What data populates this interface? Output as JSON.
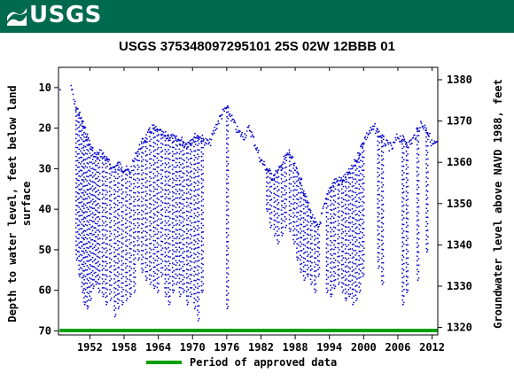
{
  "header": {
    "logo_text": "USGS"
  },
  "chart_data": {
    "type": "scatter",
    "title": "USGS 375348097295101 25S 02W 12BBB 01",
    "ylabel_left": [
      "Depth to water level, feet below land",
      "surface"
    ],
    "ylabel_right": "Groundwater level above NAVD 1988, feet",
    "x_ticks": [
      "1952",
      "1958",
      "1964",
      "1970",
      "1976",
      "1982",
      "1988",
      "1994",
      "2000",
      "2006",
      "2012"
    ],
    "xlim": [
      1946.5,
      2013
    ],
    "y_left_ticks": [
      10,
      20,
      30,
      40,
      50,
      60,
      70
    ],
    "y_left_lim": [
      5,
      71
    ],
    "y_right_ticks": [
      1320,
      1330,
      1340,
      1350,
      1360,
      1370,
      1380
    ],
    "y_right_lim": [
      1318.2,
      1383
    ],
    "series_color": "#0000cc",
    "legend": {
      "label": "Period of approved data",
      "color": "#00a000"
    },
    "approved_period": [
      1946.7,
      2012.9
    ],
    "anchors": [
      [
        1946.8,
        10.5
      ],
      [
        1948.7,
        9.5
      ],
      [
        1949.3,
        14
      ],
      [
        1950.0,
        16
      ],
      [
        1951.0,
        20
      ],
      [
        1952.0,
        24
      ],
      [
        1953.0,
        27
      ],
      [
        1954.0,
        26
      ],
      [
        1955.0,
        28
      ],
      [
        1956.0,
        30
      ],
      [
        1957.0,
        29
      ],
      [
        1958.0,
        30
      ],
      [
        1959.0,
        31
      ],
      [
        1960.0,
        27
      ],
      [
        1961.0,
        24
      ],
      [
        1962.0,
        22
      ],
      [
        1963.0,
        20
      ],
      [
        1964.0,
        21
      ],
      [
        1965.0,
        22
      ],
      [
        1966.0,
        22
      ],
      [
        1967.0,
        23
      ],
      [
        1968.0,
        23
      ],
      [
        1969.0,
        24
      ],
      [
        1970.0,
        22.5
      ],
      [
        1971.0,
        22
      ],
      [
        1972.0,
        23
      ],
      [
        1973.0,
        24
      ],
      [
        1974.0,
        20
      ],
      [
        1975.0,
        17
      ],
      [
        1976.0,
        15
      ],
      [
        1977.0,
        18
      ],
      [
        1978.0,
        21
      ],
      [
        1979.0,
        22
      ],
      [
        1980.0,
        20
      ],
      [
        1981.0,
        24
      ],
      [
        1982.0,
        28
      ],
      [
        1983.0,
        30
      ],
      [
        1984.0,
        32
      ],
      [
        1985.0,
        31
      ],
      [
        1986.0,
        28
      ],
      [
        1987.0,
        26
      ],
      [
        1988.0,
        30
      ],
      [
        1989.0,
        33
      ],
      [
        1990.0,
        38
      ],
      [
        1991.0,
        42
      ],
      [
        1992.0,
        45
      ],
      [
        1993.0,
        40
      ],
      [
        1994.0,
        35
      ],
      [
        1995.0,
        33
      ],
      [
        1996.0,
        33
      ],
      [
        1997.0,
        32
      ],
      [
        1998.0,
        30
      ],
      [
        1999.0,
        27
      ],
      [
        2000.0,
        23
      ],
      [
        2001.0,
        21
      ],
      [
        2002.0,
        20
      ],
      [
        2003.0,
        22
      ],
      [
        2004.0,
        24
      ],
      [
        2005.0,
        25
      ],
      [
        2006.0,
        22
      ],
      [
        2007.0,
        23
      ],
      [
        2008.0,
        24
      ],
      [
        2009.0,
        22
      ],
      [
        2010.0,
        19
      ],
      [
        2011.0,
        20
      ],
      [
        2012.0,
        24
      ]
    ],
    "drops": [
      [
        1949.6,
        52
      ],
      [
        1950.1,
        56
      ],
      [
        1950.6,
        60
      ],
      [
        1951.0,
        63
      ],
      [
        1951.5,
        64
      ],
      [
        1952.0,
        62
      ],
      [
        1952.5,
        59
      ],
      [
        1953.0,
        58
      ],
      [
        1953.5,
        60
      ],
      [
        1954.2,
        61
      ],
      [
        1954.8,
        63
      ],
      [
        1955.5,
        62
      ],
      [
        1956.3,
        66
      ],
      [
        1956.9,
        64
      ],
      [
        1957.6,
        63
      ],
      [
        1958.3,
        62
      ],
      [
        1959.0,
        61
      ],
      [
        1959.7,
        60
      ],
      [
        1960.4,
        52
      ],
      [
        1961.1,
        55
      ],
      [
        1961.8,
        57
      ],
      [
        1962.5,
        58
      ],
      [
        1963.2,
        59
      ],
      [
        1963.8,
        60
      ],
      [
        1964.5,
        56
      ],
      [
        1965.2,
        61
      ],
      [
        1965.8,
        63
      ],
      [
        1966.5,
        60
      ],
      [
        1967.1,
        58
      ],
      [
        1967.7,
        61
      ],
      [
        1968.3,
        60
      ],
      [
        1969.0,
        63
      ],
      [
        1969.6,
        61
      ],
      [
        1970.3,
        64
      ],
      [
        1970.9,
        67
      ],
      [
        1971.6,
        60
      ],
      [
        1976.0,
        64
      ],
      [
        1983.0,
        40
      ],
      [
        1983.6,
        44
      ],
      [
        1984.3,
        46
      ],
      [
        1984.9,
        48
      ],
      [
        1985.6,
        46
      ],
      [
        1986.2,
        44
      ],
      [
        1987.0,
        45
      ],
      [
        1987.7,
        48
      ],
      [
        1988.3,
        52
      ],
      [
        1988.9,
        55
      ],
      [
        1989.5,
        57
      ],
      [
        1990.1,
        56
      ],
      [
        1990.7,
        58
      ],
      [
        1991.4,
        60
      ],
      [
        1992.0,
        56
      ],
      [
        1993.5,
        60
      ],
      [
        1994.2,
        61
      ],
      [
        1994.8,
        59
      ],
      [
        1995.5,
        58
      ],
      [
        1996.2,
        60
      ],
      [
        1996.8,
        62
      ],
      [
        1997.4,
        61
      ],
      [
        1998.0,
        63
      ],
      [
        1998.6,
        62
      ],
      [
        1999.2,
        60
      ],
      [
        1999.8,
        56
      ],
      [
        2002.5,
        54
      ],
      [
        2003.2,
        58
      ],
      [
        2006.8,
        63
      ],
      [
        2007.5,
        60
      ],
      [
        2009.4,
        57
      ],
      [
        2011.0,
        50
      ]
    ]
  }
}
